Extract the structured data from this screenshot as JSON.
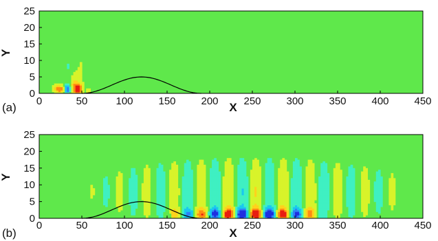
{
  "chart_data": [
    {
      "type": "heatmap",
      "panel_label": "(a)",
      "xlabel": "X",
      "ylabel": "Y",
      "xlim": [
        0,
        450
      ],
      "ylim": [
        0,
        25
      ],
      "x_ticks": [
        "0",
        "50",
        "100",
        "150",
        "200",
        "250",
        "300",
        "350",
        "400",
        "450"
      ],
      "y_ticks": [
        "0",
        "5",
        "10",
        "15",
        "20",
        "25"
      ],
      "background_color": "#5fe84b",
      "positive_colors": [
        "#d8f32a",
        "#ffd21c",
        "#ff8a12",
        "#e81d10"
      ],
      "negative_colors": [
        "#3ff0c2",
        "#19c8ef",
        "#2f80f5",
        "#1f2fe0"
      ],
      "bump": {
        "x_start": 50,
        "x_end": 190,
        "x_peak": 120,
        "height": 5
      },
      "wave_packet": {
        "blobs": [
          {
            "x": 22,
            "y": 1.4,
            "sign": 1,
            "amp": 0.6,
            "sx": 4,
            "sy": 0.9
          },
          {
            "x": 28,
            "y": 1.2,
            "sign": 1,
            "amp": 0.55,
            "sx": 3,
            "sy": 0.8
          },
          {
            "x": 32,
            "y": 1.3,
            "sign": -1,
            "amp": 0.85,
            "sx": 3,
            "sy": 0.9
          },
          {
            "x": 38,
            "y": 1.5,
            "sign": -1,
            "amp": 0.5,
            "sx": 3.5,
            "sy": 1.0
          },
          {
            "x": 40,
            "y": 1.6,
            "sign": 1,
            "amp": 0.75,
            "sx": 3.5,
            "sy": 1.2
          },
          {
            "x": 47,
            "y": 1.3,
            "sign": 1,
            "amp": 1.0,
            "sx": 3.5,
            "sy": 1.1
          },
          {
            "x": 52,
            "y": 1.1,
            "sign": -1,
            "amp": 0.4,
            "sx": 3,
            "sy": 0.8
          },
          {
            "x": 56,
            "y": 0.8,
            "sign": 1,
            "amp": 0.35,
            "sx": 2.5,
            "sy": 0.7
          },
          {
            "x": 42,
            "y": 4.5,
            "sign": 1,
            "amp": 0.25,
            "sx": 5,
            "sy": 2
          },
          {
            "x": 35,
            "y": 7.5,
            "sign": -1,
            "amp": 0.15,
            "sx": 5,
            "sy": 2.5
          },
          {
            "x": 48,
            "y": 9.5,
            "sign": 1,
            "amp": 0.12,
            "sx": 4,
            "sy": 3
          }
        ]
      }
    },
    {
      "type": "heatmap",
      "panel_label": "(b)",
      "xlabel": "X",
      "ylabel": "Y",
      "xlim": [
        0,
        450
      ],
      "ylim": [
        0,
        25
      ],
      "x_ticks": [
        "0",
        "50",
        "100",
        "150",
        "200",
        "250",
        "300",
        "350",
        "400",
        "450"
      ],
      "y_ticks": [
        "0",
        "5",
        "10",
        "15",
        "20",
        "25"
      ],
      "background_color": "#5fe84b",
      "positive_colors": [
        "#d8f32a",
        "#ffd21c",
        "#ff8a12",
        "#e81d10"
      ],
      "negative_colors": [
        "#3ff0c2",
        "#19c8ef",
        "#2f80f5",
        "#1f2fe0"
      ],
      "bump": {
        "x_start": 50,
        "x_end": 190,
        "x_peak": 120,
        "height": 5
      },
      "wave_train": {
        "x_start": 155,
        "x_end": 330,
        "wavelength": 32,
        "phase_x": 222,
        "envelope_center": 250,
        "envelope_width": 60,
        "core_amp": 1.0,
        "core_y": 1.3,
        "core_sy": 1.2,
        "halo_amp": 0.35,
        "halo_y": 8,
        "halo_sy": 7,
        "halo_x_start": 40,
        "halo_x_end": 420
      }
    }
  ]
}
